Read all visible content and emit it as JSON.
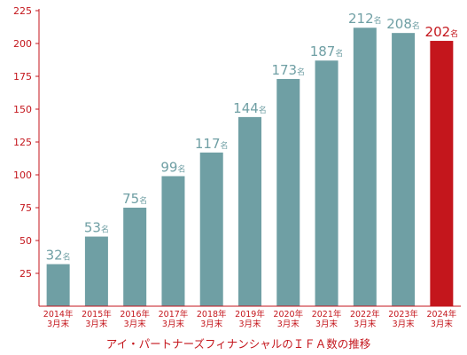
{
  "chart_data": {
    "type": "bar",
    "title": "",
    "caption": "アイ・パートナーズフィナンシャルのＩＦＡ数の推移",
    "xlabel": "",
    "ylabel": "",
    "ylim": [
      0,
      225
    ],
    "yticks": [
      25,
      50,
      75,
      100,
      125,
      150,
      175,
      200,
      225
    ],
    "value_unit": "名",
    "categories": [
      [
        "2014年",
        "3月末"
      ],
      [
        "2015年",
        "3月末"
      ],
      [
        "2016年",
        "3月末"
      ],
      [
        "2017年",
        "3月末"
      ],
      [
        "2018年",
        "3月末"
      ],
      [
        "2019年",
        "3月末"
      ],
      [
        "2020年",
        "3月末"
      ],
      [
        "2021年",
        "3月末"
      ],
      [
        "2022年",
        "3月末"
      ],
      [
        "2023年",
        "3月末"
      ],
      [
        "2024年",
        "3月末"
      ]
    ],
    "values": [
      32,
      53,
      75,
      99,
      117,
      144,
      173,
      187,
      212,
      208,
      202
    ],
    "highlight_index": 10,
    "grid": false,
    "legend": "none"
  },
  "colors": {
    "bar": "#6f9fa4",
    "bar_highlight": "#c4161c",
    "axis": "#c4161c",
    "tick_text": "#c4161c",
    "value_text": "#6f9fa4",
    "value_text_highlight": "#c4161c",
    "category_text": "#c4161c",
    "caption_text": "#c4161c"
  }
}
